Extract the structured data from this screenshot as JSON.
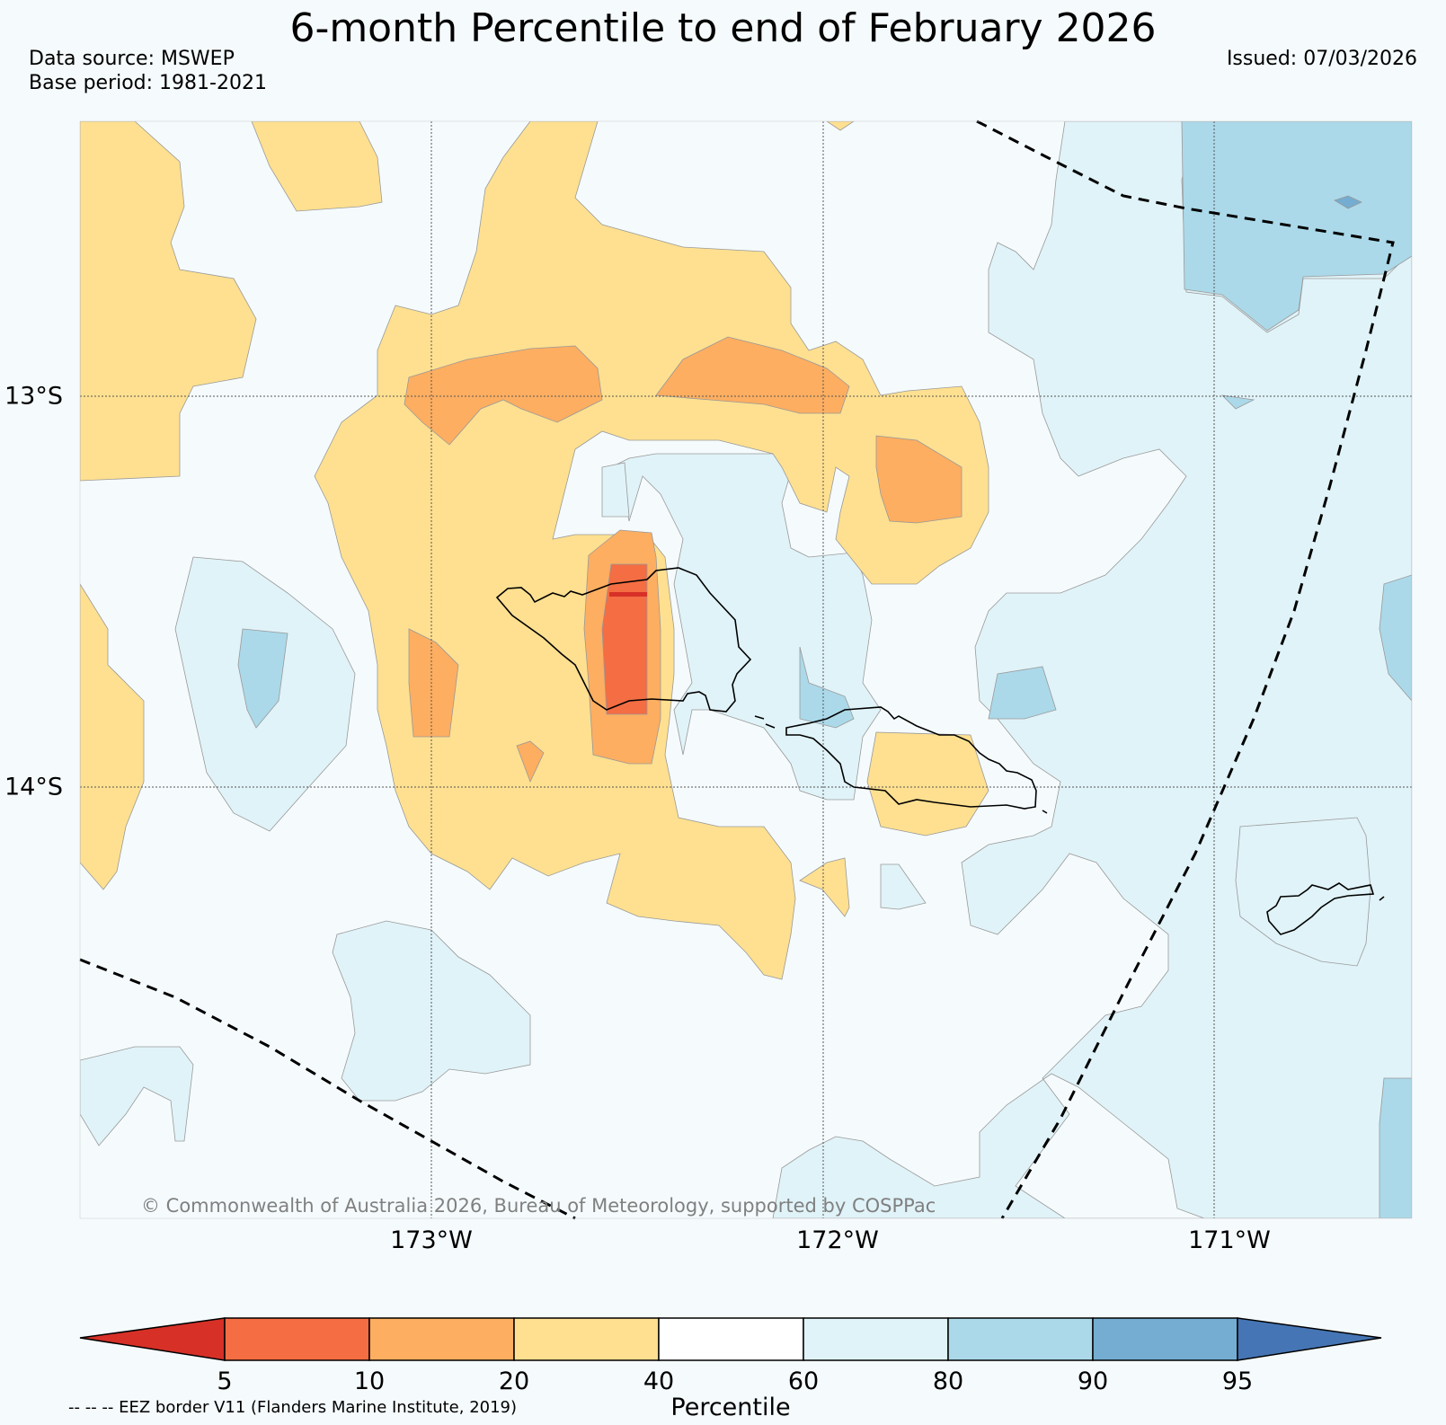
{
  "title": "6-month Percentile to end of February 2026",
  "data_source": "Data source: MSWEP",
  "base_period": "Base period: 1981-2021",
  "issued": "Issued: 07/03/2026",
  "lon_labels": [
    "173°W",
    "172°W",
    "171°W"
  ],
  "lat_labels": [
    "13°S",
    "14°S"
  ],
  "copyright": "© Commonwealth of Australia 2026, Bureau of Meteorology, supported by COSPPac",
  "colorbar": {
    "title": "Percentile",
    "ticks": [
      "5",
      "10",
      "20",
      "40",
      "60",
      "80",
      "90",
      "95"
    ],
    "colors": {
      "lt5": "#d73027",
      "p5_10": "#f46d43",
      "p10_20": "#fdae61",
      "p20_40": "#fee090",
      "p40_60": "#ffffff",
      "p60_80": "#e0f3f8",
      "p80_90": "#abd9e9",
      "p90_95": "#74add1",
      "gt95": "#4575b4"
    }
  },
  "eez_note": "-- -- -- EEZ border V11 (Flanders Marine Institute, 2019)"
}
